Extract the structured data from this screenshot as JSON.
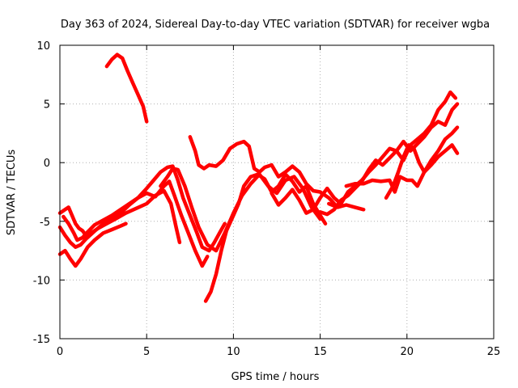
{
  "chart_data": {
    "type": "line",
    "title": "Day 363 of 2024, Sidereal Day-to-day VTEC variation (SDTVAR) for receiver wgba",
    "xlabel": "GPS time / hours",
    "ylabel": "SDTVAR / TECUs",
    "xlim": [
      0,
      25
    ],
    "ylim": [
      -15,
      10
    ],
    "xticks": [
      0,
      5,
      10,
      15,
      20,
      25
    ],
    "yticks": [
      -15,
      -10,
      -5,
      0,
      5,
      10
    ],
    "grid": true,
    "color": "#ff0000",
    "series": [
      {
        "name": "s1",
        "x": [
          2.7,
          3.0,
          3.3,
          3.6,
          3.9,
          4.2,
          4.5,
          4.8,
          5.0
        ],
        "y": [
          8.2,
          8.8,
          9.2,
          8.9,
          7.8,
          6.8,
          5.8,
          4.8,
          3.5
        ]
      },
      {
        "name": "s2",
        "x": [
          0.0,
          0.3,
          0.5,
          0.7,
          0.9,
          1.1,
          1.3,
          1.5,
          1.8,
          2.2,
          2.7,
          3.2,
          3.8,
          4.4,
          5.0,
          5.5,
          6.0,
          6.4,
          6.7,
          6.9
        ],
        "y": [
          -4.3,
          -4.0,
          -3.8,
          -4.5,
          -5.2,
          -5.6,
          -5.8,
          -6.2,
          -6.0,
          -5.6,
          -5.2,
          -4.8,
          -4.3,
          -3.9,
          -3.5,
          -2.8,
          -2.4,
          -3.5,
          -5.5,
          -6.8
        ]
      },
      {
        "name": "s3",
        "x": [
          0.0,
          0.3,
          0.6,
          0.9,
          1.2,
          1.5,
          1.8,
          2.1,
          2.5,
          3.0,
          3.5,
          4.0,
          4.5,
          5.0,
          5.5,
          6.0,
          6.3,
          6.6,
          7.0,
          7.4,
          7.8,
          8.2,
          8.5
        ],
        "y": [
          -5.5,
          -6.2,
          -6.8,
          -7.2,
          -7.0,
          -6.5,
          -6.1,
          -5.7,
          -5.2,
          -4.8,
          -4.3,
          -3.6,
          -3.0,
          -2.6,
          -2.9,
          -2.0,
          -1.6,
          -2.8,
          -4.5,
          -6.0,
          -7.5,
          -8.8,
          -8.0
        ]
      },
      {
        "name": "s4",
        "x": [
          0.0,
          0.3,
          0.6,
          0.9,
          1.2,
          1.6,
          2.0,
          2.5,
          3.0,
          3.5,
          3.8
        ],
        "y": [
          -7.8,
          -7.5,
          -8.2,
          -8.8,
          -8.2,
          -7.2,
          -6.6,
          -6.0,
          -5.7,
          -5.4,
          -5.2
        ]
      },
      {
        "name": "s5",
        "x": [
          0.2,
          0.5,
          0.8,
          1.0,
          1.3,
          1.6,
          2.0,
          2.5,
          3.0,
          3.5,
          4.0,
          4.5,
          5.0,
          5.4,
          5.8,
          6.2,
          6.5,
          6.8,
          7.1,
          7.5,
          7.9,
          8.2,
          8.6,
          8.9,
          9.2,
          9.5
        ],
        "y": [
          -4.6,
          -5.2,
          -6.0,
          -6.6,
          -6.4,
          -5.9,
          -5.3,
          -4.9,
          -4.5,
          -4.0,
          -3.5,
          -3.0,
          -2.2,
          -1.5,
          -0.8,
          -0.4,
          -0.3,
          -1.5,
          -3.0,
          -4.5,
          -6.0,
          -7.2,
          -7.5,
          -6.8,
          -6.0,
          -5.2
        ]
      },
      {
        "name": "s6",
        "x": [
          5.8,
          6.2,
          6.5,
          6.8,
          7.2,
          7.6,
          8.0,
          8.5,
          9.0,
          9.5,
          10.0,
          10.5,
          11.0,
          11.5,
          12.0,
          12.5,
          13.0,
          13.5,
          14.0,
          14.5,
          15.0
        ],
        "y": [
          -2.0,
          -1.2,
          -0.5,
          -0.6,
          -2.0,
          -3.8,
          -5.5,
          -7.0,
          -7.5,
          -6.0,
          -4.3,
          -2.8,
          -1.8,
          -1.0,
          -2.0,
          -2.6,
          -1.5,
          -1.2,
          -2.2,
          -3.8,
          -4.8
        ]
      },
      {
        "name": "s7",
        "x": [
          8.4,
          8.7,
          9.0,
          9.3,
          9.6,
          10.0,
          10.3,
          10.6,
          11.0,
          11.4,
          11.8,
          12.2,
          12.6,
          13.0,
          13.4,
          13.8,
          14.2,
          14.6,
          15.0,
          15.3
        ],
        "y": [
          -11.8,
          -11.0,
          -9.5,
          -7.5,
          -5.8,
          -4.5,
          -3.5,
          -2.0,
          -1.2,
          -1.0,
          -1.4,
          -2.5,
          -2.0,
          -1.0,
          -1.6,
          -2.5,
          -2.0,
          -3.5,
          -4.5,
          -5.2
        ]
      },
      {
        "name": "s8",
        "x": [
          7.5,
          7.8,
          8.0,
          8.3,
          8.6,
          9.0,
          9.4,
          9.8,
          10.2,
          10.6,
          10.9,
          11.2,
          11.5,
          11.8,
          12.2,
          12.6,
          13.0,
          13.4,
          13.8,
          14.2,
          14.6,
          15.0,
          15.5,
          16.0
        ],
        "y": [
          2.2,
          1.0,
          -0.2,
          -0.5,
          -0.2,
          -0.3,
          0.2,
          1.2,
          1.6,
          1.8,
          1.4,
          -0.5,
          -0.8,
          -0.4,
          -0.2,
          -1.2,
          -0.8,
          -0.3,
          -0.8,
          -1.8,
          -2.4,
          -2.5,
          -3.0,
          -3.8
        ]
      },
      {
        "name": "s9",
        "x": [
          12.2,
          12.6,
          13.0,
          13.4,
          13.8,
          14.2,
          14.6,
          15.0,
          15.4,
          15.8,
          16.2,
          16.6,
          17.0,
          17.4,
          17.8,
          18.2,
          18.6,
          19.0,
          19.4,
          19.8,
          20.2,
          20.6,
          21.0,
          21.4,
          21.8,
          22.2,
          22.5,
          22.8
        ],
        "y": [
          -2.6,
          -3.6,
          -3.0,
          -2.3,
          -3.2,
          -4.3,
          -4.0,
          -3.0,
          -2.2,
          -3.0,
          -3.5,
          -2.5,
          -2.0,
          -1.5,
          -0.8,
          -0.2,
          0.5,
          1.2,
          1.0,
          0.2,
          1.5,
          2.0,
          2.5,
          3.2,
          4.5,
          5.2,
          6.0,
          5.5
        ]
      },
      {
        "name": "s10",
        "x": [
          15.0,
          15.4,
          15.8,
          16.2,
          16.6,
          17.0,
          17.4,
          17.8,
          18.2,
          18.6,
          19.0,
          19.4,
          19.8,
          20.2,
          20.6,
          21.0,
          21.4,
          21.8,
          22.2,
          22.6,
          22.9
        ],
        "y": [
          -4.2,
          -4.4,
          -4.0,
          -3.2,
          -2.8,
          -2.2,
          -1.6,
          -0.6,
          0.2,
          -0.2,
          0.4,
          1.0,
          1.8,
          1.0,
          1.6,
          2.2,
          3.0,
          3.5,
          3.2,
          4.5,
          5.0
        ]
      },
      {
        "name": "s11",
        "x": [
          15.5,
          16.0,
          16.5,
          17.0,
          17.5
        ],
        "y": [
          -3.5,
          -3.8,
          -3.6,
          -3.8,
          -4.0
        ]
      },
      {
        "name": "s12",
        "x": [
          16.5,
          17.0,
          17.5,
          18.0,
          18.5,
          19.0,
          19.3,
          19.6,
          20.0,
          20.3,
          20.6,
          21.0,
          21.4,
          21.8,
          22.2,
          22.6,
          22.9
        ],
        "y": [
          -2.0,
          -1.8,
          -1.8,
          -1.5,
          -1.6,
          -1.5,
          -2.5,
          -1.2,
          -1.5,
          -1.5,
          -2.0,
          -0.8,
          -0.2,
          0.5,
          1.0,
          1.5,
          0.8
        ]
      },
      {
        "name": "s13",
        "x": [
          18.8,
          19.2,
          19.5,
          19.8,
          20.1,
          20.4,
          20.7,
          21.0,
          21.4,
          21.8,
          22.2,
          22.6,
          22.9
        ],
        "y": [
          -3.0,
          -2.0,
          -0.8,
          0.5,
          1.5,
          1.2,
          0.0,
          -0.8,
          0.2,
          1.0,
          2.0,
          2.5,
          3.0
        ]
      }
    ]
  }
}
